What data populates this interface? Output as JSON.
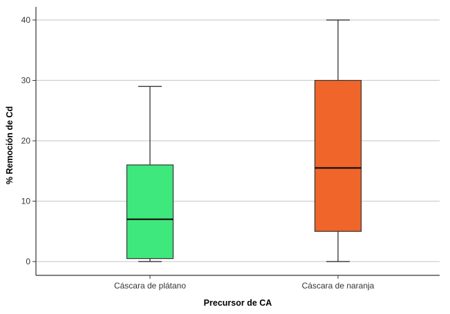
{
  "chart_data": {
    "type": "boxplot",
    "title": "",
    "xlabel": "Precursor de CA",
    "ylabel": "% Remoción de Cd",
    "ylim": [
      -2,
      42
    ],
    "yticks": [
      0,
      10,
      20,
      30,
      40
    ],
    "grid": true,
    "categories": [
      "Cáscara de plátano",
      "Cáscara de naranja"
    ],
    "boxes": [
      {
        "category": "Cáscara de plátano",
        "min": 0,
        "q1": 0.5,
        "median": 7,
        "q3": 16,
        "max": 29,
        "color": "#3fe87c"
      },
      {
        "category": "Cáscara de naranja",
        "min": 0,
        "q1": 5,
        "median": 15.5,
        "q3": 30,
        "max": 40,
        "color": "#f0652a"
      }
    ]
  }
}
